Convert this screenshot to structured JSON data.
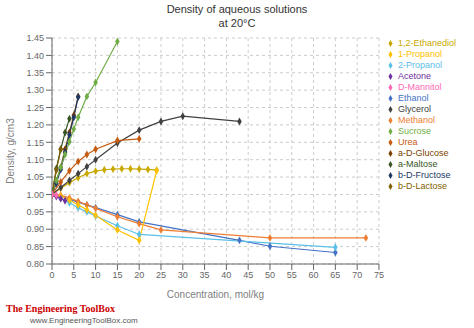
{
  "chart_data": {
    "type": "line",
    "title": "Density of aqueous solutions",
    "subtitle": "at 20°C",
    "x_label": "Concentration, mol/kg",
    "y_label": "Density, g/cm3",
    "xlim": [
      0,
      75
    ],
    "ylim": [
      0.8,
      1.45
    ],
    "xticks": [
      0,
      5,
      10,
      15,
      20,
      25,
      30,
      35,
      40,
      45,
      50,
      55,
      60,
      65,
      70,
      75
    ],
    "yticks": [
      {
        "value": 0.8,
        "label": "0.80"
      },
      0.85,
      {
        "value": 0.9,
        "label": "0.90"
      },
      0.95,
      {
        "value": 1.0,
        "label": "1.00"
      },
      1.05,
      {
        "value": 1.1,
        "label": "1.10"
      },
      1.15,
      {
        "value": 1.2,
        "label": "1.20"
      },
      1.25,
      {
        "value": 1.3,
        "label": "1.30"
      },
      1.35,
      {
        "value": 1.4,
        "label": "1.40"
      },
      1.45
    ],
    "grid": true,
    "legend": "right",
    "annotations": [
      "The Engineering ToolBox",
      "www.EngineeringToolBox.com"
    ],
    "series": [
      {
        "name": "1,2-Ethanediol",
        "color": "#C9A800",
        "marker": "diamond",
        "x": [
          0,
          2,
          4,
          6,
          8,
          10,
          12,
          14,
          16,
          18,
          20,
          22,
          24
        ],
        "values": [
          1.0,
          1.018,
          1.034,
          1.048,
          1.06,
          1.067,
          1.071,
          1.073,
          1.074,
          1.074,
          1.073,
          1.072,
          1.07
        ]
      },
      {
        "name": "Ethanol",
        "color": "#4472C4",
        "marker": "diamond",
        "x": [
          0,
          2,
          4,
          6,
          8,
          10,
          15,
          20,
          43,
          50,
          65
        ],
        "values": [
          1.0,
          0.994,
          0.986,
          0.978,
          0.97,
          0.962,
          0.942,
          0.921,
          0.868,
          0.851,
          0.833
        ]
      },
      {
        "name": "a-D-Glucose",
        "color": "#7B3F00",
        "marker": "diamond",
        "x": [
          0,
          1,
          2,
          3,
          4,
          5,
          6
        ],
        "values": [
          1.0,
          1.038,
          1.078,
          1.13,
          1.178,
          1.228,
          1.282
        ]
      },
      {
        "name": "b-D-Fructose",
        "color": "#203864",
        "marker": "diamond",
        "x": [
          0,
          1,
          2,
          3,
          4,
          5,
          6
        ],
        "values": [
          1.0,
          1.032,
          1.072,
          1.122,
          1.172,
          1.222,
          1.28
        ]
      },
      {
        "name": "Glycerol",
        "color": "#404040",
        "marker": "diamond",
        "x": [
          0,
          2,
          4,
          6,
          8,
          10,
          15,
          20,
          25,
          30,
          43
        ],
        "values": [
          1.0,
          1.02,
          1.04,
          1.06,
          1.08,
          1.1,
          1.148,
          1.185,
          1.21,
          1.225,
          1.21
        ]
      },
      {
        "name": "Methanol",
        "color": "#ED7D31",
        "marker": "diamond",
        "x": [
          0,
          2,
          4,
          6,
          8,
          10,
          15,
          20,
          25,
          50,
          72
        ],
        "values": [
          1.0,
          0.998,
          0.99,
          0.98,
          0.97,
          0.96,
          0.936,
          0.916,
          0.898,
          0.875,
          0.875
        ]
      },
      {
        "name": "2-Propanol",
        "color": "#5BC0E8",
        "marker": "diamond",
        "x": [
          0,
          2,
          4,
          6,
          8,
          10,
          15,
          20,
          65
        ],
        "values": [
          1.0,
          0.99,
          0.976,
          0.962,
          0.95,
          0.938,
          0.91,
          0.885,
          0.848
        ]
      },
      {
        "name": "Sucrose",
        "color": "#70AD47",
        "marker": "diamond",
        "x": [
          0,
          1,
          2,
          3,
          4,
          5,
          6,
          8,
          10,
          15
        ],
        "values": [
          1.0,
          1.04,
          1.078,
          1.115,
          1.152,
          1.188,
          1.222,
          1.282,
          1.322,
          1.44
        ]
      },
      {
        "name": "1-Propanol",
        "color": "#FFC000",
        "marker": "diamond",
        "x": [
          0,
          2,
          4,
          6,
          8,
          10,
          15,
          20,
          24
        ],
        "values": [
          1.0,
          0.995,
          0.984,
          0.97,
          0.956,
          0.94,
          0.898,
          0.868,
          1.068
        ]
      },
      {
        "name": "a-Maltose",
        "color": "#375623",
        "marker": "diamond",
        "x": [
          0,
          1,
          2,
          3,
          4
        ],
        "values": [
          1.0,
          1.075,
          1.13,
          1.178,
          1.218
        ]
      },
      {
        "name": "Urea",
        "color": "#C55A11",
        "marker": "diamond",
        "x": [
          0,
          2,
          4,
          6,
          8,
          10,
          15,
          20
        ],
        "values": [
          1.0,
          1.036,
          1.068,
          1.095,
          1.115,
          1.13,
          1.155,
          1.16
        ]
      },
      {
        "name": "b-D-Lactose",
        "color": "#806000",
        "marker": "diamond",
        "x": [
          0,
          1,
          2
        ],
        "values": [
          1.0,
          1.07,
          1.13
        ]
      },
      {
        "name": "Acetone",
        "color": "#7030A0",
        "marker": "diamond",
        "x": [
          0,
          1,
          2,
          3
        ],
        "values": [
          1.0,
          0.994,
          0.988,
          0.982
        ]
      },
      {
        "name": "D-Mannitol",
        "color": "#FF69B4",
        "marker": "diamond",
        "x": [
          0,
          1
        ],
        "values": [
          1.0,
          0.998
        ]
      }
    ]
  }
}
